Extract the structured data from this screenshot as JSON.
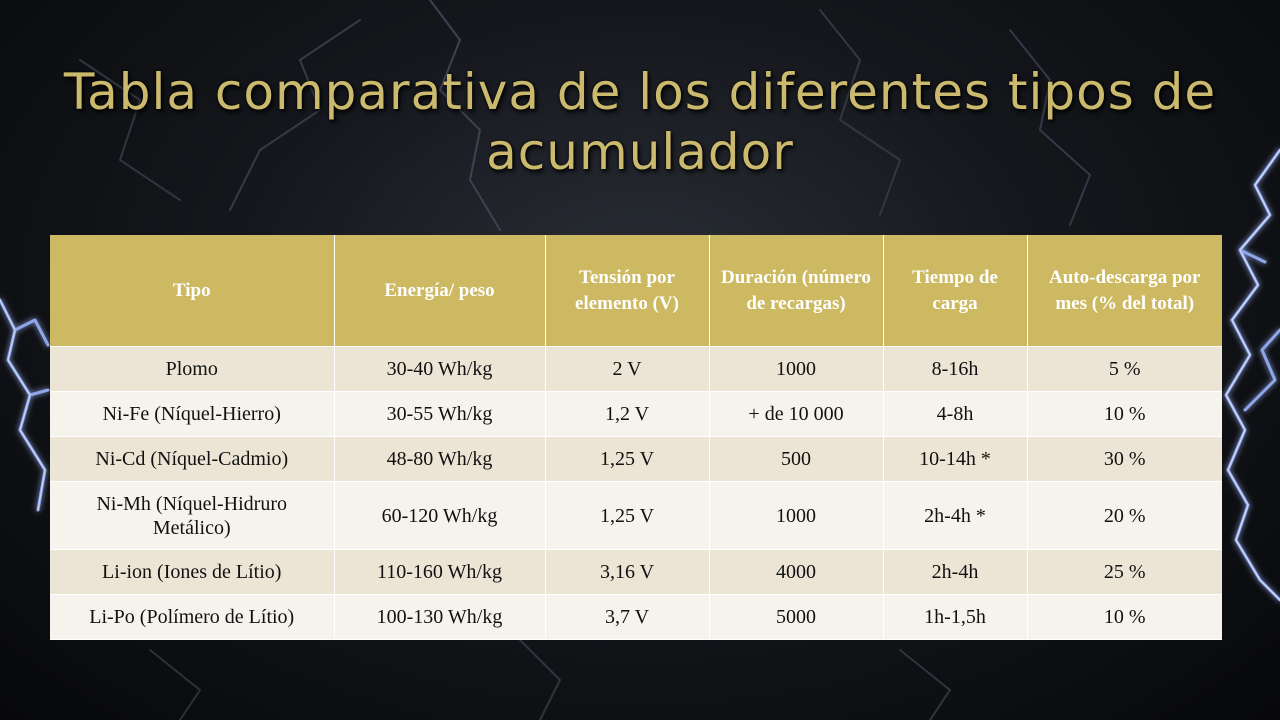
{
  "slide": {
    "title": "Tabla comparativa de los diferentes tipos de acumulador"
  },
  "table": {
    "headers": [
      "Tipo",
      "Energía/ peso",
      "Tensión por elemento (V)",
      "Duración (número de recargas)",
      "Tiempo de carga",
      "Auto-descarga por mes (% del total)"
    ],
    "rows": [
      [
        "Plomo",
        "30-40 Wh/kg",
        "2 V",
        "1000",
        "8-16h",
        "5 %"
      ],
      [
        "Ni-Fe (Níquel-Hierro)",
        "30-55 Wh/kg",
        "1,2 V",
        "+ de 10 000",
        "4-8h",
        "10 %"
      ],
      [
        "Ni-Cd (Níquel-Cadmio)",
        "48-80 Wh/kg",
        "1,25 V",
        "500",
        "10-14h *",
        "30 %"
      ],
      [
        "Ni-Mh (Níquel-Hidruro Metálico)",
        "60-120 Wh/kg",
        "1,25 V",
        "1000",
        "2h-4h *",
        "20 %"
      ],
      [
        "Li-ion (Iones de Lítio)",
        "110-160 Wh/kg",
        "3,16 V",
        "4000",
        "2h-4h",
        "25 %"
      ],
      [
        "Li-Po (Polímero de Lítio)",
        "100-130 Wh/kg",
        "3,7 V",
        "5000",
        "1h-1,5h",
        "10 %"
      ]
    ]
  },
  "colors": {
    "title": "#cbb96e",
    "header_bg": "#ccb962",
    "row_odd": "#ece5d5",
    "row_even": "#f6f3ec",
    "lightning": "#8fa6e8"
  }
}
